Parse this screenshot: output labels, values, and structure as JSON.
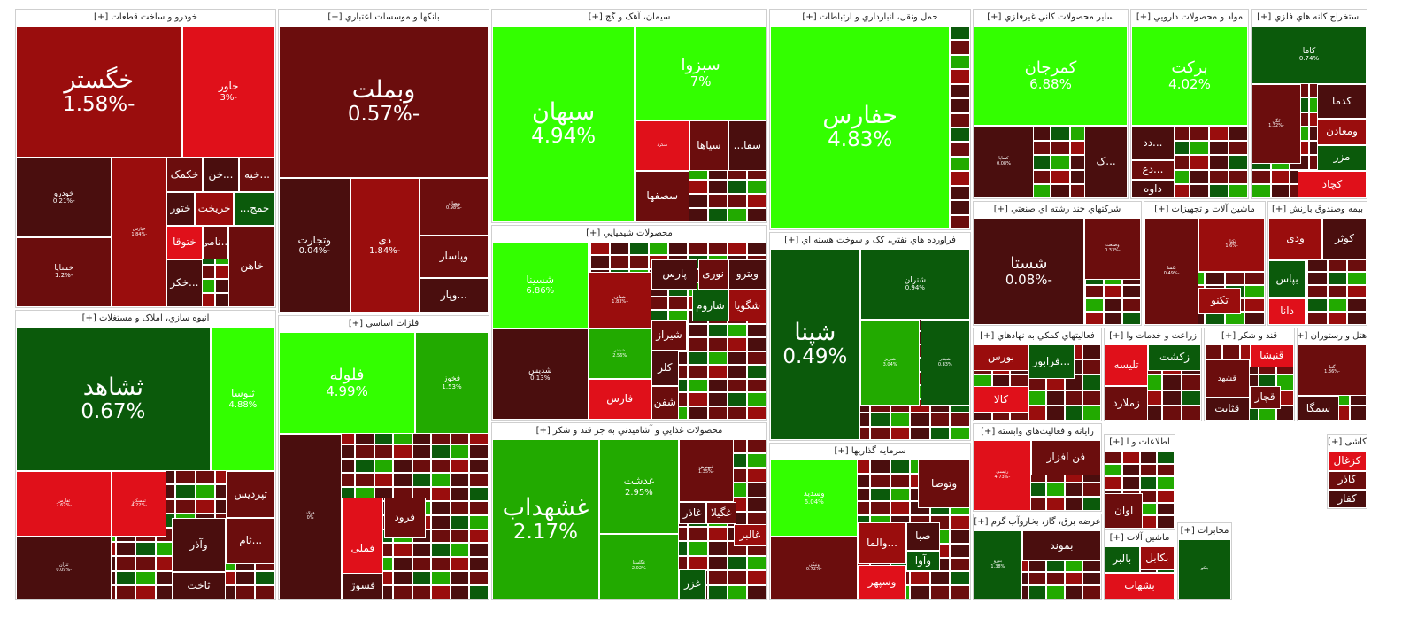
{
  "chart_data": {
    "type": "treemap",
    "title": "",
    "legend": "none",
    "colors": {
      "green_strong": "#33ff00",
      "green_mid": "#22aa00",
      "green_dark": "#0b5a0b",
      "neutral": "#4a0e0e",
      "red_dark": "#6b0d0d",
      "red_mid": "#9a0d0d",
      "red_strong": "#e0101a"
    },
    "sectors": [
      {
        "id": "auto",
        "name": "خودرو و ساخت قطعات [+]",
        "weight": 11.0,
        "stocks": [
          {
            "symbol": "خگستر",
            "change": -1.58
          },
          {
            "symbol": "خاور",
            "change": -3
          },
          {
            "symbol": "خودرو",
            "change": -0.21
          },
          {
            "symbol": "خساپا",
            "change": -1.2
          },
          {
            "symbol": "خپارس",
            "change": -1.84
          },
          {
            "symbol": "خکمک",
            "change": null
          },
          {
            "symbol": "...خن",
            "change": null
          },
          {
            "symbol": "...خبه",
            "change": null
          },
          {
            "symbol": "ختور",
            "change": null
          },
          {
            "symbol": "خریخت",
            "change": null
          },
          {
            "symbol": "خمج...",
            "change": null
          },
          {
            "symbol": "ختوقا",
            "change": null
          },
          {
            "symbol": "...نامی",
            "change": null
          },
          {
            "symbol": "...خکر",
            "change": null
          },
          {
            "symbol": "خاهن",
            "change": null
          }
        ]
      },
      {
        "id": "banks",
        "name": "بانکها و موسسات اعتباري [+]",
        "weight": 8.0,
        "stocks": [
          {
            "symbol": "وبملت",
            "change": -0.57
          },
          {
            "symbol": "وتجارت",
            "change": -0.04
          },
          {
            "symbol": "دی",
            "change": -1.84
          },
          {
            "symbol": "وبصادر",
            "change": -0.98
          },
          {
            "symbol": "وپاسار",
            "change": null
          },
          {
            "symbol": "...وپار",
            "change": null
          }
        ]
      },
      {
        "id": "cement",
        "name": "سيمان، آهک و گچ [+]",
        "weight": 5.0,
        "stocks": [
          {
            "symbol": "سبهان",
            "change": 4.94
          },
          {
            "symbol": "سبزوا",
            "change": 7
          },
          {
            "symbol": "سکرد",
            "change": null
          },
          {
            "symbol": "سپاها",
            "change": null
          },
          {
            "symbol": "سفا...",
            "change": null
          },
          {
            "symbol": "سصفها",
            "change": null
          }
        ]
      },
      {
        "id": "transport",
        "name": "حمل ونقل، انبارداري و ارتباطات [+]",
        "weight": 4.5,
        "stocks": [
          {
            "symbol": "حفارس",
            "change": 4.83
          }
        ]
      },
      {
        "id": "nonmetal",
        "name": "ساير محصولات کاني غيرفلزي [+]",
        "weight": 2.7,
        "stocks": [
          {
            "symbol": "کمرجان",
            "change": 6.88
          },
          {
            "symbol": "کساپا",
            "change": 0.08
          },
          {
            "symbol": "...ک",
            "change": null
          }
        ]
      },
      {
        "id": "pharma",
        "name": "مواد و محصولات دارويي [+]",
        "weight": 2.3,
        "stocks": [
          {
            "symbol": "برکت",
            "change": 4.02
          },
          {
            "symbol": "...دد",
            "change": null
          },
          {
            "symbol": "...دع",
            "change": null
          },
          {
            "symbol": "داوه",
            "change": null
          }
        ]
      },
      {
        "id": "mining",
        "name": "استخراج کانه هاي فلزي [+]",
        "weight": 2.4,
        "stocks": [
          {
            "symbol": "کاما",
            "change": 0.74
          },
          {
            "symbol": "کگل",
            "change": -1.32
          },
          {
            "symbol": "کدما",
            "change": null
          },
          {
            "symbol": "ومعادن",
            "change": null
          },
          {
            "symbol": "مزر",
            "change": null
          },
          {
            "symbol": "کچاد",
            "change": null
          }
        ]
      },
      {
        "id": "housing",
        "name": "انبوه سازي، املاک و مستغلات [+]",
        "weight": 8.8,
        "stocks": [
          {
            "symbol": "ثشاهد",
            "change": 0.67
          },
          {
            "symbol": "ثنوسا",
            "change": 4.88
          },
          {
            "symbol": "ثفارس",
            "change": -2.62
          },
          {
            "symbol": "ثمسکن",
            "change": -4.22
          },
          {
            "symbol": "ثتران",
            "change": -0.09
          },
          {
            "symbol": "ثپردیس",
            "change": null
          },
          {
            "symbol": "وآذر",
            "change": null
          },
          {
            "symbol": "...ثام",
            "change": null
          },
          {
            "symbol": "ثاخت",
            "change": null
          }
        ]
      },
      {
        "id": "metals",
        "name": "فلزات اساسي [+]",
        "weight": 8.3,
        "stocks": [
          {
            "symbol": "فلوله",
            "change": 4.99
          },
          {
            "symbol": "فخوز",
            "change": 1.53
          },
          {
            "symbol": "فولاد",
            "change": 0
          },
          {
            "symbol": "فملی",
            "change": null
          },
          {
            "symbol": "فرود",
            "change": null
          },
          {
            "symbol": "فسوژ",
            "change": null
          }
        ]
      },
      {
        "id": "chemical",
        "name": "محصولات شيميايي [+]",
        "weight": 6.4,
        "stocks": [
          {
            "symbol": "شسینا",
            "change": 6.86
          },
          {
            "symbol": "شدیس",
            "change": 0.13
          },
          {
            "symbol": "شفاف",
            "change": -1.83
          },
          {
            "symbol": "شبندر",
            "change": 2.56
          },
          {
            "symbol": "پارس",
            "change": null
          },
          {
            "symbol": "نوری",
            "change": null
          },
          {
            "symbol": "ویترو",
            "change": null
          },
          {
            "symbol": "شگویا",
            "change": null
          },
          {
            "symbol": "شاروم",
            "change": null
          },
          {
            "symbol": "فارس",
            "change": null
          },
          {
            "symbol": "شیراز",
            "change": null
          },
          {
            "symbol": "کلر",
            "change": null
          },
          {
            "symbol": "شفن",
            "change": null
          }
        ]
      },
      {
        "id": "food",
        "name": "محصولات غذايي و آشاميدني به جز قند و شکر [+]",
        "weight": 6.1,
        "stocks": [
          {
            "symbol": "غشهداب",
            "change": 2.17
          },
          {
            "symbol": "غدشت",
            "change": 2.95
          },
          {
            "symbol": "غگلستا",
            "change": 2.02
          },
          {
            "symbol": "غبهنوش",
            "change": -1.35
          },
          {
            "symbol": "غگیلا",
            "change": null
          },
          {
            "symbol": "غاذر",
            "change": null
          },
          {
            "symbol": "غالبر",
            "change": null
          },
          {
            "symbol": "غزر",
            "change": null
          }
        ]
      },
      {
        "id": "oil",
        "name": "فراورده هاي نفتي، کک و سوخت هسته اي [+]",
        "weight": 3.7,
        "stocks": [
          {
            "symbol": "شپنا",
            "change": 0.49
          },
          {
            "symbol": "شتران",
            "change": 0.94
          },
          {
            "symbol": "شبریز",
            "change": 3.04
          },
          {
            "symbol": "شبندر",
            "change": 0.83
          }
        ]
      },
      {
        "id": "invest",
        "name": "سرمايه گذاريها [+]",
        "weight": 3.5,
        "stocks": [
          {
            "symbol": "وسدید",
            "change": 6.04
          },
          {
            "symbol": "ونیکی",
            "change": -0.72
          },
          {
            "symbol": "وتوصا",
            "change": null
          },
          {
            "symbol": "صبا",
            "change": null
          },
          {
            "symbol": "...والما",
            "change": null
          },
          {
            "symbol": "وآوا",
            "change": null
          },
          {
            "symbol": "وسپهر",
            "change": null
          }
        ]
      },
      {
        "id": "multi",
        "name": "شرکتهاي چند رشته اي صنعتي [+]",
        "weight": 2.1,
        "stocks": [
          {
            "symbol": "شستا",
            "change": -0.08
          },
          {
            "symbol": "وصنعت",
            "change": -0.33
          }
        ]
      },
      {
        "id": "machinery",
        "name": "ماشين آلات و تجهيزات [+]",
        "weight": 1.7,
        "stocks": [
          {
            "symbol": "تکشا",
            "change": -0.49
          },
          {
            "symbol": "تکنار",
            "change": -1.6
          },
          {
            "symbol": "تکنو",
            "change": null
          }
        ]
      },
      {
        "id": "fund",
        "name": "بيمه وصندوق بازنش [+]",
        "weight": 1.5,
        "stocks": [
          {
            "symbol": "کوثر",
            "change": null
          },
          {
            "symbol": "ودی",
            "change": null
          },
          {
            "symbol": "بپاس",
            "change": null
          },
          {
            "symbol": "دانا",
            "change": null
          }
        ]
      },
      {
        "id": "support",
        "name": "فعاليتهاي کمکي به نهادهاي [+]",
        "weight": 1.4,
        "stocks": [
          {
            "symbol": "بورس",
            "change": null
          },
          {
            "symbol": "...فرابور",
            "change": null
          },
          {
            "symbol": "کالا",
            "change": null
          }
        ]
      },
      {
        "id": "agri",
        "name": "زراعت و خدمات وا [+]",
        "weight": 1.0,
        "stocks": [
          {
            "symbol": "زکشت",
            "change": null
          },
          {
            "symbol": "تلیسه",
            "change": null
          },
          {
            "symbol": "زملارد",
            "change": null
          }
        ]
      },
      {
        "id": "sugar",
        "name": "قند و شکر [+]",
        "weight": 0.9,
        "stocks": [
          {
            "symbol": "قنیشا",
            "change": null
          },
          {
            "symbol": "قشهد",
            "change": null
          },
          {
            "symbol": "قثابت",
            "change": null
          },
          {
            "symbol": "قچار",
            "change": null
          }
        ]
      },
      {
        "id": "hotel",
        "name": "هتل و رستوران [+]",
        "weight": 0.8,
        "stocks": [
          {
            "symbol": "گنبا",
            "change": -1.36
          },
          {
            "symbol": "سمگا",
            "change": null
          }
        ]
      },
      {
        "id": "computer",
        "name": "رايانه و فعاليت‌هاي وابسته [+]",
        "weight": 1.2,
        "stocks": [
          {
            "symbol": "رتپسی",
            "change": -4.73
          },
          {
            "symbol": "فن افزار",
            "change": null
          }
        ]
      },
      {
        "id": "info",
        "name": "اطلاعات و ا [+]",
        "weight": 0.7,
        "stocks": [
          {
            "symbol": "اوان",
            "change": null
          }
        ]
      },
      {
        "id": "electric",
        "name": "عرضه برق، گاز، بخاروآب گرم [+]",
        "weight": 1.1,
        "stocks": [
          {
            "symbol": "بموند",
            "change": null
          },
          {
            "symbol": "بنیرو",
            "change": 1.38
          }
        ]
      },
      {
        "id": "electrical",
        "name": "ماشين آلات [+]",
        "weight": 0.6,
        "stocks": [
          {
            "symbol": "بکابل",
            "change": null
          },
          {
            "symbol": "بالبر",
            "change": null
          },
          {
            "symbol": "بشهاب",
            "change": null
          }
        ]
      },
      {
        "id": "radio",
        "name": "مخابرات [+]",
        "weight": 0.5,
        "stocks": [
          {
            "symbol": "بتکو",
            "change": null
          }
        ]
      },
      {
        "id": "kashi",
        "name": "کاشی [+]",
        "weight": 0.4,
        "stocks": [
          {
            "symbol": "کزغال",
            "change": null
          },
          {
            "symbol": "کاذر",
            "change": null
          },
          {
            "symbol": "کفار",
            "change": null
          }
        ]
      }
    ]
  }
}
